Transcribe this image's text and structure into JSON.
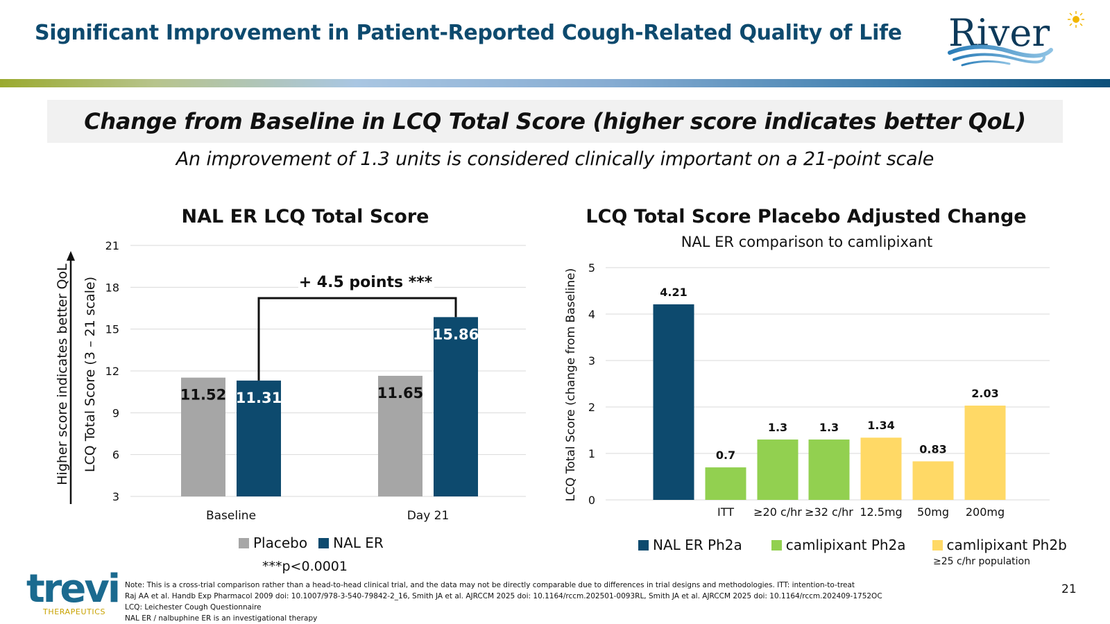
{
  "page": {
    "title": "Significant Improvement in Patient-Reported Cough-Related Quality of Life",
    "header": "Change from Baseline in LCQ Total Score (higher score indicates better QoL)",
    "subheader": "An improvement of 1.3 units is considered clinically important on a 21-point scale",
    "page_number": "21"
  },
  "logos": {
    "river": "River",
    "trevi_main": "trevi",
    "trevi_sub": "THERAPEUTICS"
  },
  "colors": {
    "placebo": "#a6a6a6",
    "nal_er": "#0d4a6e",
    "camlipixant_ph2a": "#92d050",
    "camlipixant_ph2b": "#ffd966",
    "title": "#0d4a6e"
  },
  "chart_data": [
    {
      "type": "bar",
      "title": "NAL ER LCQ Total Score",
      "ylabel": "LCQ Total Score (3 – 21 scale)",
      "yarrow_label": "Higher score indicates better QoL",
      "ylim": [
        3,
        21
      ],
      "yticks": [
        3,
        6,
        9,
        12,
        15,
        18,
        21
      ],
      "grid": true,
      "categories": [
        "Baseline",
        "Day 21"
      ],
      "series": [
        {
          "name": "Placebo",
          "values": [
            11.52,
            11.65
          ],
          "labels": [
            "11.52",
            "11.65"
          ]
        },
        {
          "name": "NAL ER",
          "values": [
            11.31,
            15.86
          ],
          "labels": [
            "11.31",
            "15.86"
          ]
        }
      ],
      "annotation": "+ 4.5 points ***",
      "legend_placement": "bottom",
      "footnote": "***p<0.0001"
    },
    {
      "type": "bar",
      "title": "LCQ Total Score Placebo Adjusted Change",
      "subtitle": "NAL ER comparison to camlipixant",
      "ylabel": "LCQ Total Score (change from Baseline)",
      "ylim": [
        0,
        5
      ],
      "yticks": [
        0,
        1,
        2,
        3,
        4,
        5
      ],
      "grid": true,
      "categories": [
        "",
        "ITT",
        "≥20 c/hr",
        "≥32 c/hr",
        "12.5mg",
        "50mg",
        "200mg"
      ],
      "values": [
        4.21,
        0.7,
        1.3,
        1.3,
        1.34,
        0.83,
        2.03
      ],
      "labels": [
        "4.21",
        "0.7",
        "1.3",
        "1.3",
        "1.34",
        "0.83",
        "2.03"
      ],
      "bar_groups": [
        "NAL ER Ph2a",
        "camlipixant Ph2a",
        "camlipixant Ph2a",
        "camlipixant Ph2a",
        "camlipixant Ph2b",
        "camlipixant Ph2b",
        "camlipixant Ph2b"
      ],
      "legend": [
        "NAL ER Ph2a",
        "camlipixant Ph2a",
        "camlipixant Ph2b"
      ],
      "legend_placement": "bottom",
      "legend_note": "≥25 c/hr population"
    }
  ],
  "footnotes": [
    "Note: This is a cross-trial comparison rather than a head-to-head clinical trial, and the data may not be directly comparable due to differences in trial designs and methodologies. ITT: intention-to-treat",
    "Raj AA et al. Handb Exp Pharmacol 2009 doi: 10.1007/978-3-540-79842-2_16, Smith JA et al. AJRCCM 2025 doi: 10.1164/rccm.202501-0093RL, Smith JA et al. AJRCCM 2025 doi: 10.1164/rccm.202409-1752OC",
    "LCQ: Leichester Cough Questionnaire",
    "NAL ER / nalbuphine ER is an investigational therapy"
  ]
}
